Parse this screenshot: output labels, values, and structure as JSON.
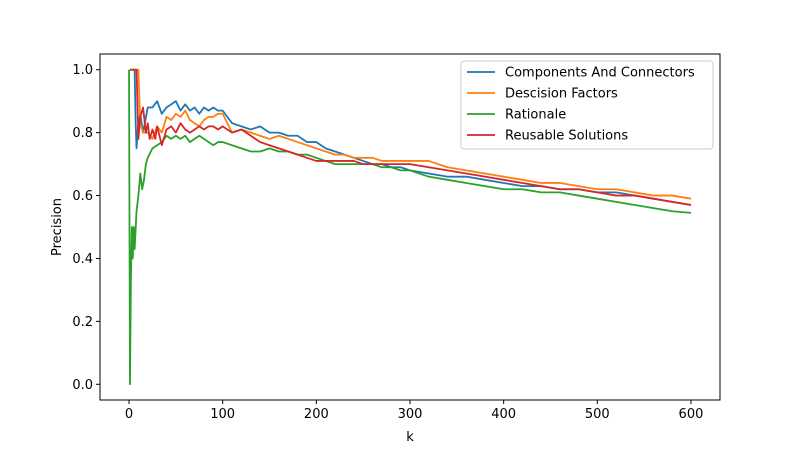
{
  "chart_data": {
    "type": "line",
    "xlabel": "k",
    "ylabel": "Precision",
    "xlim": [
      -31,
      631
    ],
    "ylim": [
      -0.05,
      1.05
    ],
    "xticks": [
      0,
      100,
      200,
      300,
      400,
      500,
      600
    ],
    "yticks": [
      0.0,
      0.2,
      0.4,
      0.6,
      0.8,
      1.0
    ],
    "xtick_labels": [
      "0",
      "100",
      "200",
      "300",
      "400",
      "500",
      "600"
    ],
    "ytick_labels": [
      "0.0",
      "0.2",
      "0.4",
      "0.6",
      "0.8",
      "1.0"
    ],
    "grid": false,
    "legend": "top-right",
    "series": [
      {
        "name": "Components And Connectors",
        "color": "#1f77b4",
        "x": [
          1,
          3,
          6,
          7,
          8,
          10,
          12,
          15,
          20,
          25,
          30,
          35,
          40,
          45,
          50,
          55,
          60,
          65,
          70,
          75,
          80,
          85,
          90,
          95,
          100,
          110,
          120,
          130,
          140,
          150,
          160,
          170,
          180,
          190,
          200,
          210,
          220,
          230,
          240,
          250,
          260,
          270,
          280,
          290,
          300,
          320,
          340,
          360,
          380,
          400,
          420,
          440,
          460,
          480,
          500,
          520,
          540,
          560,
          580,
          600
        ],
        "y": [
          1.0,
          1.0,
          1.0,
          0.84,
          0.75,
          0.83,
          0.86,
          0.8,
          0.88,
          0.88,
          0.9,
          0.86,
          0.88,
          0.89,
          0.9,
          0.87,
          0.89,
          0.87,
          0.88,
          0.86,
          0.88,
          0.87,
          0.88,
          0.87,
          0.87,
          0.83,
          0.82,
          0.81,
          0.82,
          0.8,
          0.8,
          0.79,
          0.79,
          0.77,
          0.77,
          0.75,
          0.74,
          0.73,
          0.72,
          0.71,
          0.7,
          0.7,
          0.69,
          0.69,
          0.68,
          0.67,
          0.66,
          0.66,
          0.65,
          0.64,
          0.63,
          0.63,
          0.62,
          0.62,
          0.61,
          0.61,
          0.6,
          0.59,
          0.58,
          0.57
        ]
      },
      {
        "name": "Descision Factors",
        "color": "#ff7f0e",
        "x": [
          1,
          3,
          6,
          10,
          12,
          15,
          20,
          25,
          30,
          35,
          40,
          45,
          50,
          55,
          60,
          65,
          70,
          75,
          80,
          85,
          90,
          95,
          100,
          110,
          120,
          130,
          140,
          150,
          160,
          170,
          180,
          190,
          200,
          210,
          220,
          230,
          240,
          250,
          260,
          270,
          280,
          290,
          300,
          310,
          320,
          330,
          340,
          360,
          380,
          400,
          420,
          440,
          460,
          480,
          500,
          520,
          540,
          560,
          580,
          600
        ],
        "y": [
          1.0,
          1.0,
          1.0,
          1.0,
          0.83,
          0.8,
          0.8,
          0.78,
          0.82,
          0.8,
          0.85,
          0.84,
          0.86,
          0.85,
          0.87,
          0.84,
          0.83,
          0.82,
          0.84,
          0.85,
          0.85,
          0.86,
          0.86,
          0.8,
          0.81,
          0.8,
          0.79,
          0.78,
          0.79,
          0.78,
          0.77,
          0.76,
          0.75,
          0.74,
          0.73,
          0.73,
          0.72,
          0.72,
          0.72,
          0.71,
          0.71,
          0.71,
          0.71,
          0.71,
          0.71,
          0.7,
          0.69,
          0.68,
          0.67,
          0.66,
          0.65,
          0.64,
          0.64,
          0.63,
          0.62,
          0.62,
          0.61,
          0.6,
          0.6,
          0.59
        ]
      },
      {
        "name": "Rationale",
        "color": "#2ca02c",
        "x": [
          0,
          1,
          2,
          3,
          4,
          5,
          6,
          8,
          10,
          12,
          14,
          16,
          18,
          20,
          25,
          30,
          35,
          40,
          45,
          50,
          55,
          60,
          65,
          70,
          75,
          80,
          85,
          90,
          95,
          100,
          110,
          120,
          130,
          140,
          150,
          160,
          170,
          180,
          190,
          200,
          210,
          220,
          230,
          240,
          250,
          260,
          270,
          280,
          290,
          300,
          320,
          340,
          360,
          380,
          400,
          420,
          440,
          460,
          480,
          500,
          520,
          540,
          560,
          580,
          600
        ],
        "y": [
          1.0,
          0.0,
          0.33,
          0.5,
          0.4,
          0.5,
          0.43,
          0.55,
          0.6,
          0.67,
          0.62,
          0.65,
          0.7,
          0.72,
          0.75,
          0.76,
          0.77,
          0.79,
          0.78,
          0.79,
          0.78,
          0.79,
          0.77,
          0.78,
          0.79,
          0.78,
          0.77,
          0.76,
          0.77,
          0.77,
          0.76,
          0.75,
          0.74,
          0.74,
          0.75,
          0.74,
          0.74,
          0.73,
          0.73,
          0.72,
          0.71,
          0.7,
          0.7,
          0.7,
          0.7,
          0.7,
          0.69,
          0.69,
          0.68,
          0.68,
          0.66,
          0.65,
          0.64,
          0.63,
          0.62,
          0.62,
          0.61,
          0.61,
          0.6,
          0.59,
          0.58,
          0.57,
          0.56,
          0.55,
          0.545
        ]
      },
      {
        "name": "Reusable Solutions",
        "color": "#d62728",
        "x": [
          1,
          3,
          6,
          8,
          10,
          12,
          15,
          18,
          20,
          22,
          25,
          28,
          30,
          35,
          40,
          45,
          50,
          55,
          60,
          65,
          70,
          75,
          80,
          85,
          90,
          95,
          100,
          105,
          110,
          120,
          130,
          140,
          150,
          160,
          170,
          180,
          190,
          200,
          210,
          220,
          230,
          240,
          250,
          260,
          270,
          280,
          290,
          300,
          320,
          340,
          360,
          380,
          400,
          420,
          440,
          460,
          480,
          500,
          520,
          540,
          560,
          580,
          600
        ],
        "y": [
          1.0,
          1.0,
          1.0,
          1.0,
          0.78,
          0.85,
          0.88,
          0.8,
          0.83,
          0.78,
          0.81,
          0.78,
          0.82,
          0.76,
          0.81,
          0.82,
          0.8,
          0.83,
          0.81,
          0.8,
          0.81,
          0.82,
          0.81,
          0.82,
          0.82,
          0.81,
          0.82,
          0.81,
          0.8,
          0.81,
          0.79,
          0.77,
          0.76,
          0.75,
          0.74,
          0.73,
          0.72,
          0.71,
          0.71,
          0.71,
          0.71,
          0.71,
          0.7,
          0.7,
          0.7,
          0.7,
          0.7,
          0.7,
          0.69,
          0.68,
          0.67,
          0.66,
          0.65,
          0.64,
          0.63,
          0.62,
          0.62,
          0.61,
          0.6,
          0.6,
          0.59,
          0.58,
          0.57
        ]
      }
    ]
  }
}
